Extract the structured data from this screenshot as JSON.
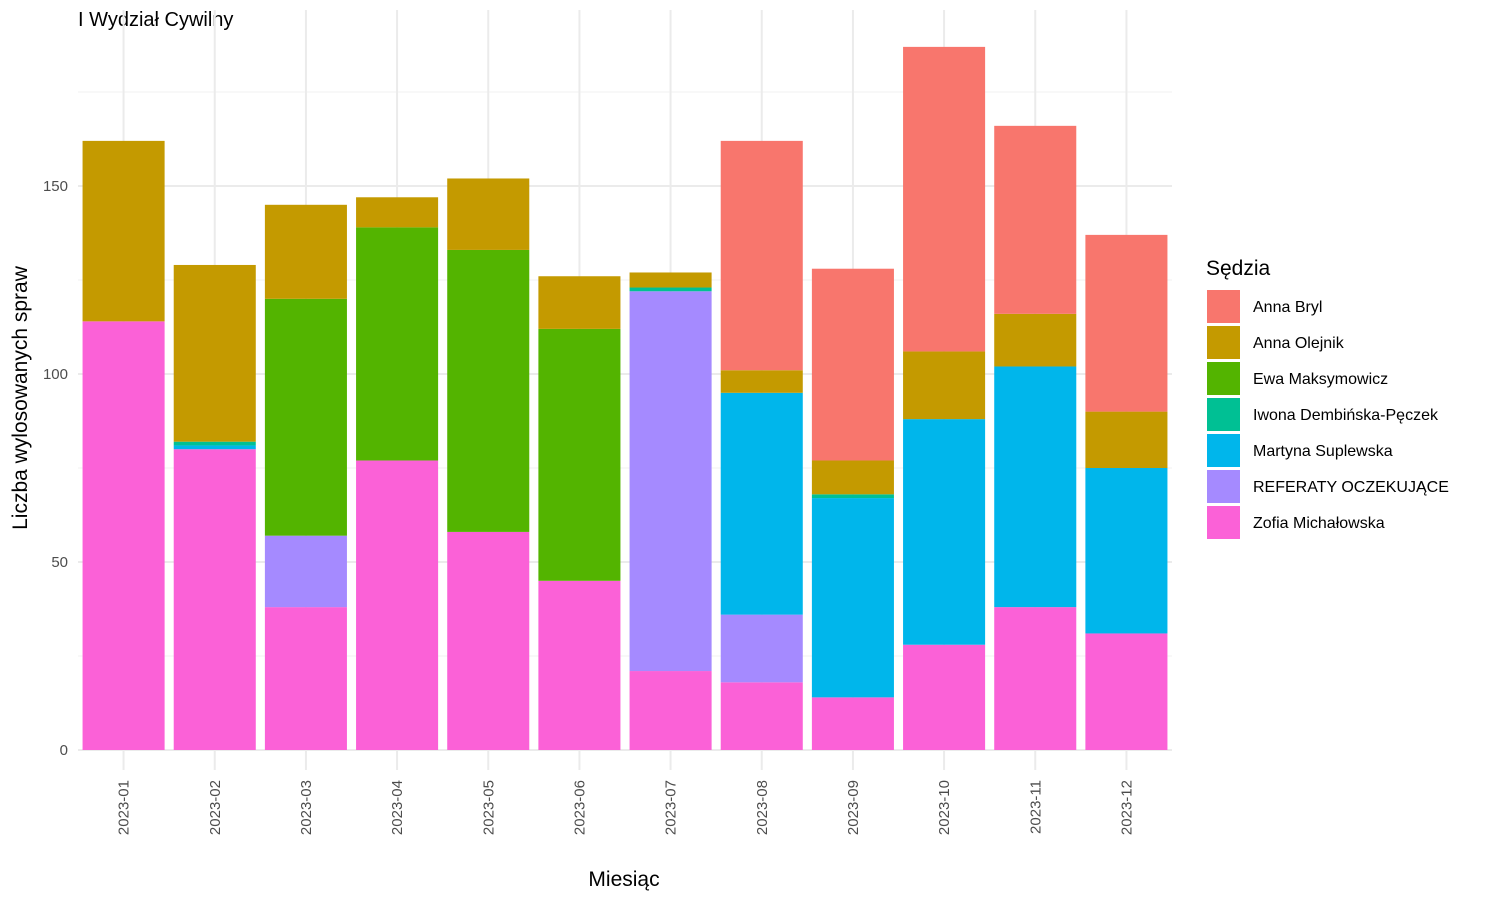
{
  "chart_data": {
    "type": "bar",
    "stacked": true,
    "title": "I Wydział Cywilny",
    "xlabel": "Miesiąc",
    "ylabel": "Liczba wylosowanych spraw",
    "ylim": [
      0,
      190
    ],
    "yticks": [
      0,
      50,
      100,
      150
    ],
    "grid": true,
    "legend_position": "right",
    "legend_title": "Sędzia",
    "categories": [
      "2023-01",
      "2023-02",
      "2023-03",
      "2023-04",
      "2023-05",
      "2023-06",
      "2023-07",
      "2023-08",
      "2023-09",
      "2023-10",
      "2023-11",
      "2023-12"
    ],
    "series": [
      {
        "name": "Anna Bryl",
        "color": "#F8766D",
        "values": [
          0,
          0,
          0,
          0,
          0,
          0,
          0,
          61,
          51,
          81,
          50,
          47
        ]
      },
      {
        "name": "Anna Olejnik",
        "color": "#C49A00",
        "values": [
          48,
          47,
          25,
          8,
          19,
          14,
          4,
          6,
          9,
          18,
          14,
          15
        ]
      },
      {
        "name": "Ewa Maksymowicz",
        "color": "#53B400",
        "values": [
          0,
          0,
          63,
          62,
          75,
          67,
          0,
          0,
          0,
          0,
          0,
          0
        ]
      },
      {
        "name": "Iwona Dembińska-Pęczek",
        "color": "#00C094",
        "values": [
          0,
          1,
          0,
          0,
          0,
          0,
          1,
          0,
          1,
          0,
          0,
          0
        ]
      },
      {
        "name": "Martyna Suplewska",
        "color": "#00B6EB",
        "values": [
          0,
          1,
          0,
          0,
          0,
          0,
          0,
          59,
          53,
          60,
          64,
          44
        ]
      },
      {
        "name": "REFERATY OCZEKUJĄCE",
        "color": "#A58AFF",
        "values": [
          0,
          0,
          19,
          0,
          0,
          0,
          101,
          18,
          0,
          0,
          0,
          0
        ]
      },
      {
        "name": "Zofia Michałowska",
        "color": "#FB61D7",
        "values": [
          114,
          80,
          38,
          77,
          58,
          45,
          21,
          18,
          14,
          28,
          38,
          31
        ]
      }
    ]
  }
}
